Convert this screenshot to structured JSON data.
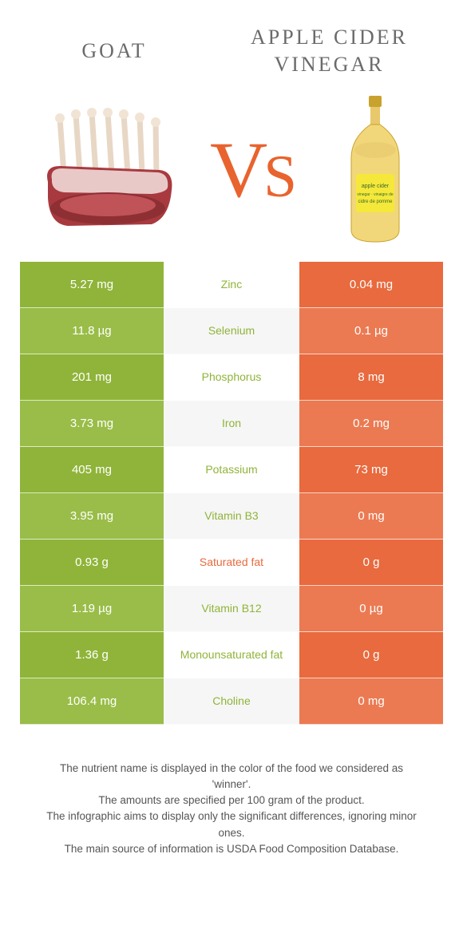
{
  "header": {
    "left_title": "GOAT",
    "right_title": "APPLE CIDER VINEGAR",
    "vs_v": "V",
    "vs_s": "S"
  },
  "colors": {
    "left_food": "#8fb439",
    "left_food_alt": "#99bd48",
    "right_food": "#e86a3e",
    "right_food_alt": "#eb7a52",
    "mid_bg": "#ffffff",
    "mid_bg_alt": "#f6f6f6",
    "mid_text_winner_left": "#8fb439",
    "mid_text_winner_right": "#e86a3e",
    "vs_color": "#e9632e",
    "title_color": "#6b6b6b",
    "footnote_color": "#555555"
  },
  "rows": [
    {
      "label": "Zinc",
      "left": "5.27 mg",
      "right": "0.04 mg",
      "winner": "left"
    },
    {
      "label": "Selenium",
      "left": "11.8 µg",
      "right": "0.1 µg",
      "winner": "left"
    },
    {
      "label": "Phosphorus",
      "left": "201 mg",
      "right": "8 mg",
      "winner": "left"
    },
    {
      "label": "Iron",
      "left": "3.73 mg",
      "right": "0.2 mg",
      "winner": "left"
    },
    {
      "label": "Potassium",
      "left": "405 mg",
      "right": "73 mg",
      "winner": "left"
    },
    {
      "label": "Vitamin B3",
      "left": "3.95 mg",
      "right": "0 mg",
      "winner": "left"
    },
    {
      "label": "Saturated fat",
      "left": "0.93 g",
      "right": "0 g",
      "winner": "right"
    },
    {
      "label": "Vitamin B12",
      "left": "1.19 µg",
      "right": "0 µg",
      "winner": "left"
    },
    {
      "label": "Monounsaturated fat",
      "left": "1.36 g",
      "right": "0 g",
      "winner": "left"
    },
    {
      "label": "Choline",
      "left": "106.4 mg",
      "right": "0 mg",
      "winner": "left"
    }
  ],
  "footnotes": {
    "line1": "The nutrient name is displayed in the color of the food we considered as 'winner'.",
    "line2": "The amounts are specified per 100 gram of the product.",
    "line3": "The infographic aims to display only the significant differences, ignoring minor ones.",
    "line4": "The main source of information is USDA Food Composition Database."
  },
  "images": {
    "left_alt": "goat-meat-rack",
    "right_alt": "apple-cider-vinegar-bottle"
  }
}
